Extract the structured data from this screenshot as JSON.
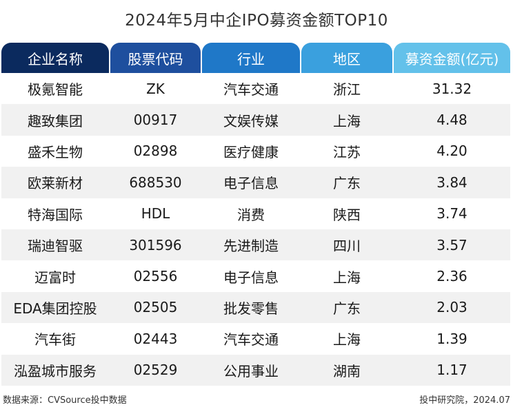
{
  "chart_data": {
    "type": "table",
    "title": "2024年5月中企IPO募资金额TOP10",
    "columns": [
      {
        "label": "企业名称",
        "color": "#0b2a5e"
      },
      {
        "label": "股票代码",
        "color": "#1e4f9e"
      },
      {
        "label": "行业",
        "color": "#1f78c8"
      },
      {
        "label": "地区",
        "color": "#3aa0de"
      },
      {
        "label": "募资金额(亿元)",
        "color": "#63c1ea"
      }
    ],
    "rows": [
      [
        "极氪智能",
        "ZK",
        "汽车交通",
        "浙江",
        "31.32"
      ],
      [
        "趣致集团",
        "00917",
        "文娱传媒",
        "上海",
        "4.48"
      ],
      [
        "盛禾生物",
        "02898",
        "医疗健康",
        "江苏",
        "4.20"
      ],
      [
        "欧莱新材",
        "688530",
        "电子信息",
        "广东",
        "3.84"
      ],
      [
        "特海国际",
        "HDL",
        "消费",
        "陕西",
        "3.74"
      ],
      [
        "瑞迪智驱",
        "301596",
        "先进制造",
        "四川",
        "3.57"
      ],
      [
        "迈富时",
        "02556",
        "电子信息",
        "上海",
        "2.36"
      ],
      [
        "EDA集团控股",
        "02505",
        "批发零售",
        "广东",
        "2.03"
      ],
      [
        "汽车街",
        "02443",
        "汽车交通",
        "上海",
        "1.39"
      ],
      [
        "泓盈城市服务",
        "02529",
        "公用事业",
        "湖南",
        "1.17"
      ]
    ],
    "values": [
      31.32,
      4.48,
      4.2,
      3.84,
      3.74,
      3.57,
      2.36,
      2.03,
      1.39,
      1.17
    ]
  },
  "footer": {
    "source": "数据来源：CVSource投中数据",
    "credit": "投中研究院，2024.07"
  }
}
